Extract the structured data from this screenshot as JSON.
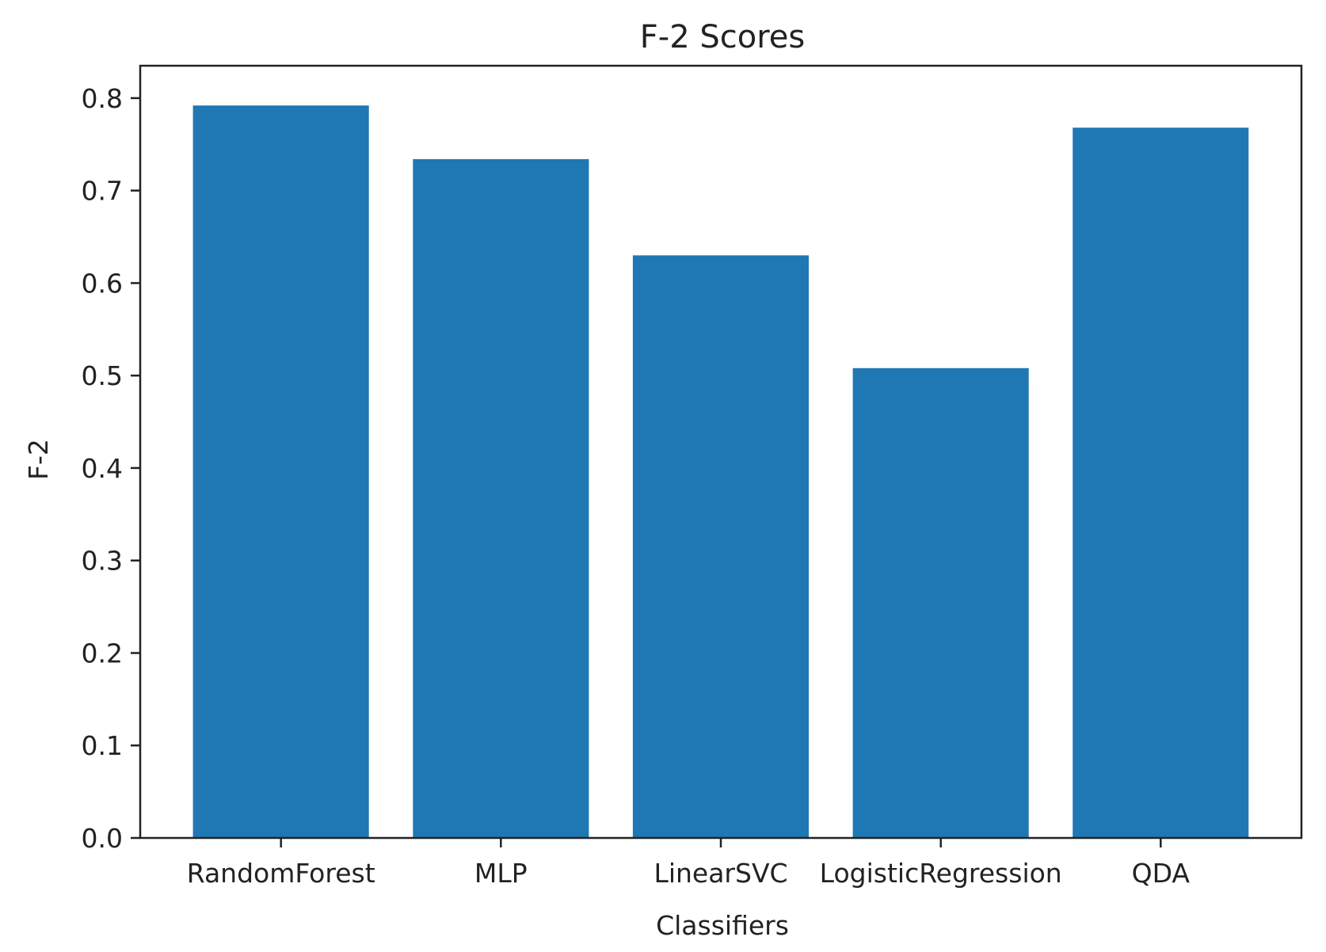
{
  "chart_data": {
    "type": "bar",
    "title": "F-2 Scores",
    "xlabel": "Classifiers",
    "ylabel": "F-2",
    "categories": [
      "RandomForest",
      "MLP",
      "LinearSVC",
      "LogisticRegression",
      "QDA"
    ],
    "values": [
      0.792,
      0.734,
      0.63,
      0.508,
      0.768
    ],
    "ylim": [
      0.0,
      0.835
    ],
    "yticks": [
      "0.0",
      "0.1",
      "0.2",
      "0.3",
      "0.4",
      "0.5",
      "0.6",
      "0.7",
      "0.8"
    ],
    "grid": false,
    "legend": "none",
    "bar_color": "#1f77b4",
    "axis_color": "#222222"
  }
}
